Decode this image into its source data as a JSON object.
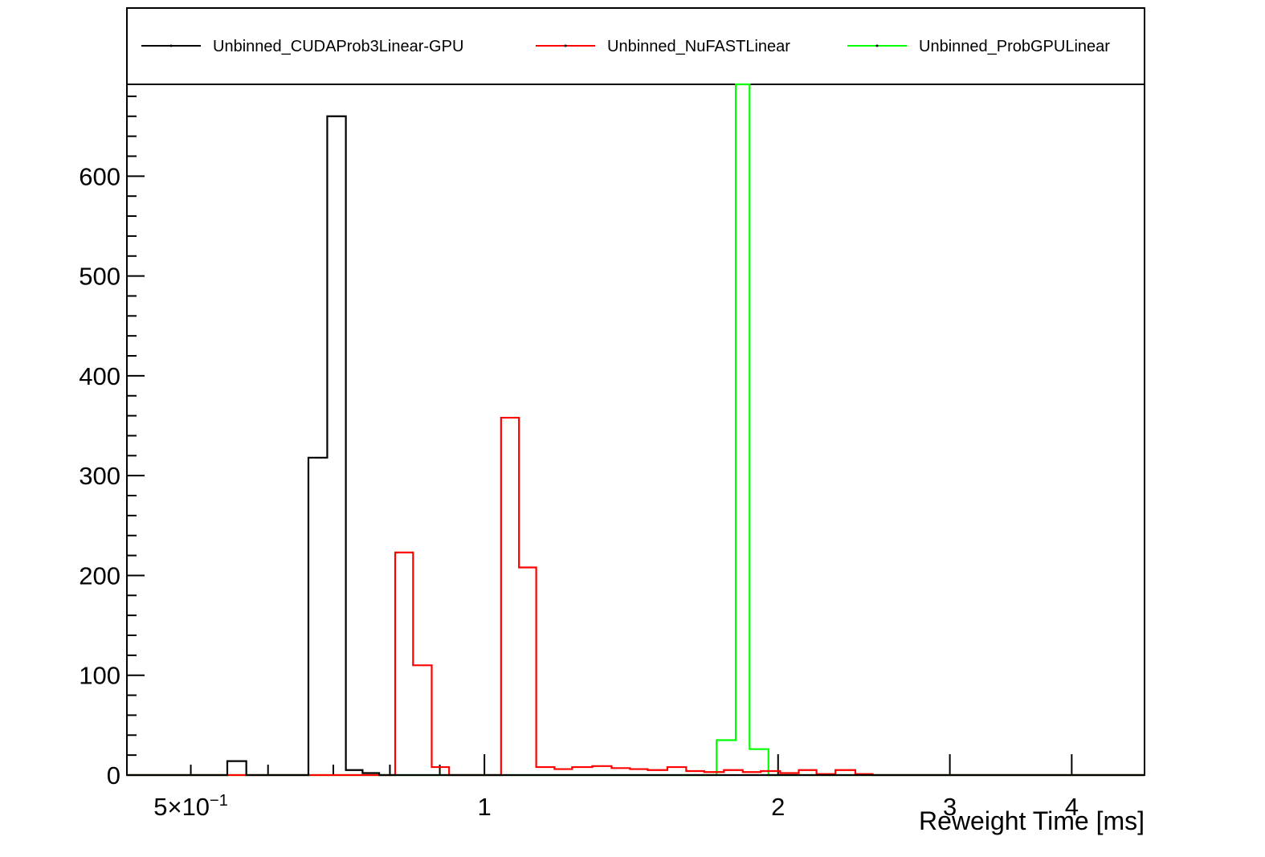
{
  "chart_data": {
    "type": "histogram",
    "title": "",
    "xlabel": "Reweight Time [ms]",
    "ylabel": "",
    "x_scale": "log",
    "xlim": [
      0.43,
      4.75
    ],
    "ylim": [
      0,
      692
    ],
    "grid": false,
    "legend_position": "top",
    "x_tick_labels": [
      {
        "value": 0.5,
        "base": "5×10",
        "exp": "−1"
      },
      {
        "value": 1,
        "base": "1",
        "exp": ""
      },
      {
        "value": 2,
        "base": "2",
        "exp": ""
      },
      {
        "value": 3,
        "base": "3",
        "exp": ""
      },
      {
        "value": 4,
        "base": "4",
        "exp": ""
      }
    ],
    "y_tick_labels": [
      "0",
      "100",
      "200",
      "300",
      "400",
      "500",
      "600"
    ],
    "y_major_ticks": [
      0,
      100,
      200,
      300,
      400,
      500,
      600
    ],
    "series": [
      {
        "name": "Unbinned_CUDAProb3Linear-GPU",
        "color": "#000000",
        "bins": [
          {
            "x0": 0.43,
            "x1": 0.545,
            "y": 0
          },
          {
            "x0": 0.545,
            "x1": 0.57,
            "y": 14
          },
          {
            "x0": 0.57,
            "x1": 0.66,
            "y": 0
          },
          {
            "x0": 0.66,
            "x1": 0.69,
            "y": 318
          },
          {
            "x0": 0.69,
            "x1": 0.721,
            "y": 660
          },
          {
            "x0": 0.721,
            "x1": 0.75,
            "y": 5
          },
          {
            "x0": 0.75,
            "x1": 0.78,
            "y": 2
          },
          {
            "x0": 0.78,
            "x1": 4.75,
            "y": 0
          }
        ]
      },
      {
        "name": "Unbinned_NuFAST​Linear",
        "color": "#ff0000",
        "bins": [
          {
            "x0": 0.43,
            "x1": 0.81,
            "y": 0
          },
          {
            "x0": 0.81,
            "x1": 0.845,
            "y": 223
          },
          {
            "x0": 0.845,
            "x1": 0.883,
            "y": 110
          },
          {
            "x0": 0.883,
            "x1": 0.92,
            "y": 8
          },
          {
            "x0": 0.92,
            "x1": 1.04,
            "y": 0
          },
          {
            "x0": 1.04,
            "x1": 1.085,
            "y": 358
          },
          {
            "x0": 1.085,
            "x1": 1.13,
            "y": 208
          },
          {
            "x0": 1.13,
            "x1": 1.18,
            "y": 8
          },
          {
            "x0": 1.18,
            "x1": 1.23,
            "y": 6
          },
          {
            "x0": 1.23,
            "x1": 1.29,
            "y": 8
          },
          {
            "x0": 1.29,
            "x1": 1.35,
            "y": 9
          },
          {
            "x0": 1.35,
            "x1": 1.41,
            "y": 7
          },
          {
            "x0": 1.41,
            "x1": 1.47,
            "y": 6
          },
          {
            "x0": 1.47,
            "x1": 1.54,
            "y": 5
          },
          {
            "x0": 1.54,
            "x1": 1.61,
            "y": 8
          },
          {
            "x0": 1.61,
            "x1": 1.68,
            "y": 4
          },
          {
            "x0": 1.68,
            "x1": 1.76,
            "y": 3
          },
          {
            "x0": 1.76,
            "x1": 1.84,
            "y": 5
          },
          {
            "x0": 1.84,
            "x1": 1.92,
            "y": 3
          },
          {
            "x0": 1.92,
            "x1": 2.01,
            "y": 4
          },
          {
            "x0": 2.01,
            "x1": 2.1,
            "y": 2
          },
          {
            "x0": 2.1,
            "x1": 2.19,
            "y": 5
          },
          {
            "x0": 2.19,
            "x1": 2.29,
            "y": 1
          },
          {
            "x0": 2.29,
            "x1": 2.4,
            "y": 5
          },
          {
            "x0": 2.4,
            "x1": 2.5,
            "y": 1
          },
          {
            "x0": 2.5,
            "x1": 4.75,
            "y": 0
          }
        ]
      },
      {
        "name": "Unbinned_ProbGPULinear",
        "color": "#00ff00",
        "bins": [
          {
            "x0": 0.43,
            "x1": 1.73,
            "y": 0
          },
          {
            "x0": 1.73,
            "x1": 1.81,
            "y": 35
          },
          {
            "x0": 1.81,
            "x1": 1.87,
            "y": 692
          },
          {
            "x0": 1.87,
            "x1": 1.955,
            "y": 26
          },
          {
            "x0": 1.955,
            "x1": 4.75,
            "y": 0
          }
        ]
      }
    ]
  }
}
